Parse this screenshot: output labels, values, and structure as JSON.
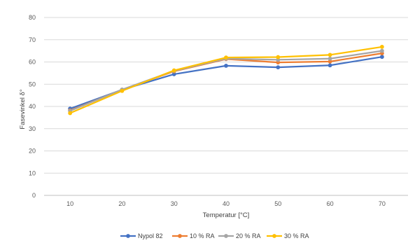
{
  "chart_data": {
    "type": "line",
    "title": "",
    "xlabel": "Temperatur [°C]",
    "ylabel": "Fasevinkel δ°",
    "x": [
      10,
      20,
      30,
      40,
      50,
      60,
      70
    ],
    "ylim": [
      0,
      80
    ],
    "yticks": [
      0,
      10,
      20,
      30,
      40,
      50,
      60,
      70,
      80
    ],
    "grid": true,
    "legend_position": "bottom",
    "series": [
      {
        "name": "Nypol 82",
        "color": "#4472C4",
        "values": [
          39.0,
          47.5,
          54.5,
          58.3,
          57.6,
          58.5,
          62.3
        ]
      },
      {
        "name": "10 % RA",
        "color": "#ED7D31",
        "values": [
          38.2,
          47.5,
          55.8,
          61.3,
          59.8,
          60.2,
          63.9
        ]
      },
      {
        "name": "20 % RA",
        "color": "#A5A5A5",
        "values": [
          38.0,
          47.6,
          56.0,
          61.5,
          61.0,
          61.5,
          65.0
        ]
      },
      {
        "name": "30 % RA",
        "color": "#FFC000",
        "values": [
          37.0,
          47.0,
          56.2,
          62.0,
          62.2,
          63.2,
          66.8
        ]
      }
    ]
  }
}
